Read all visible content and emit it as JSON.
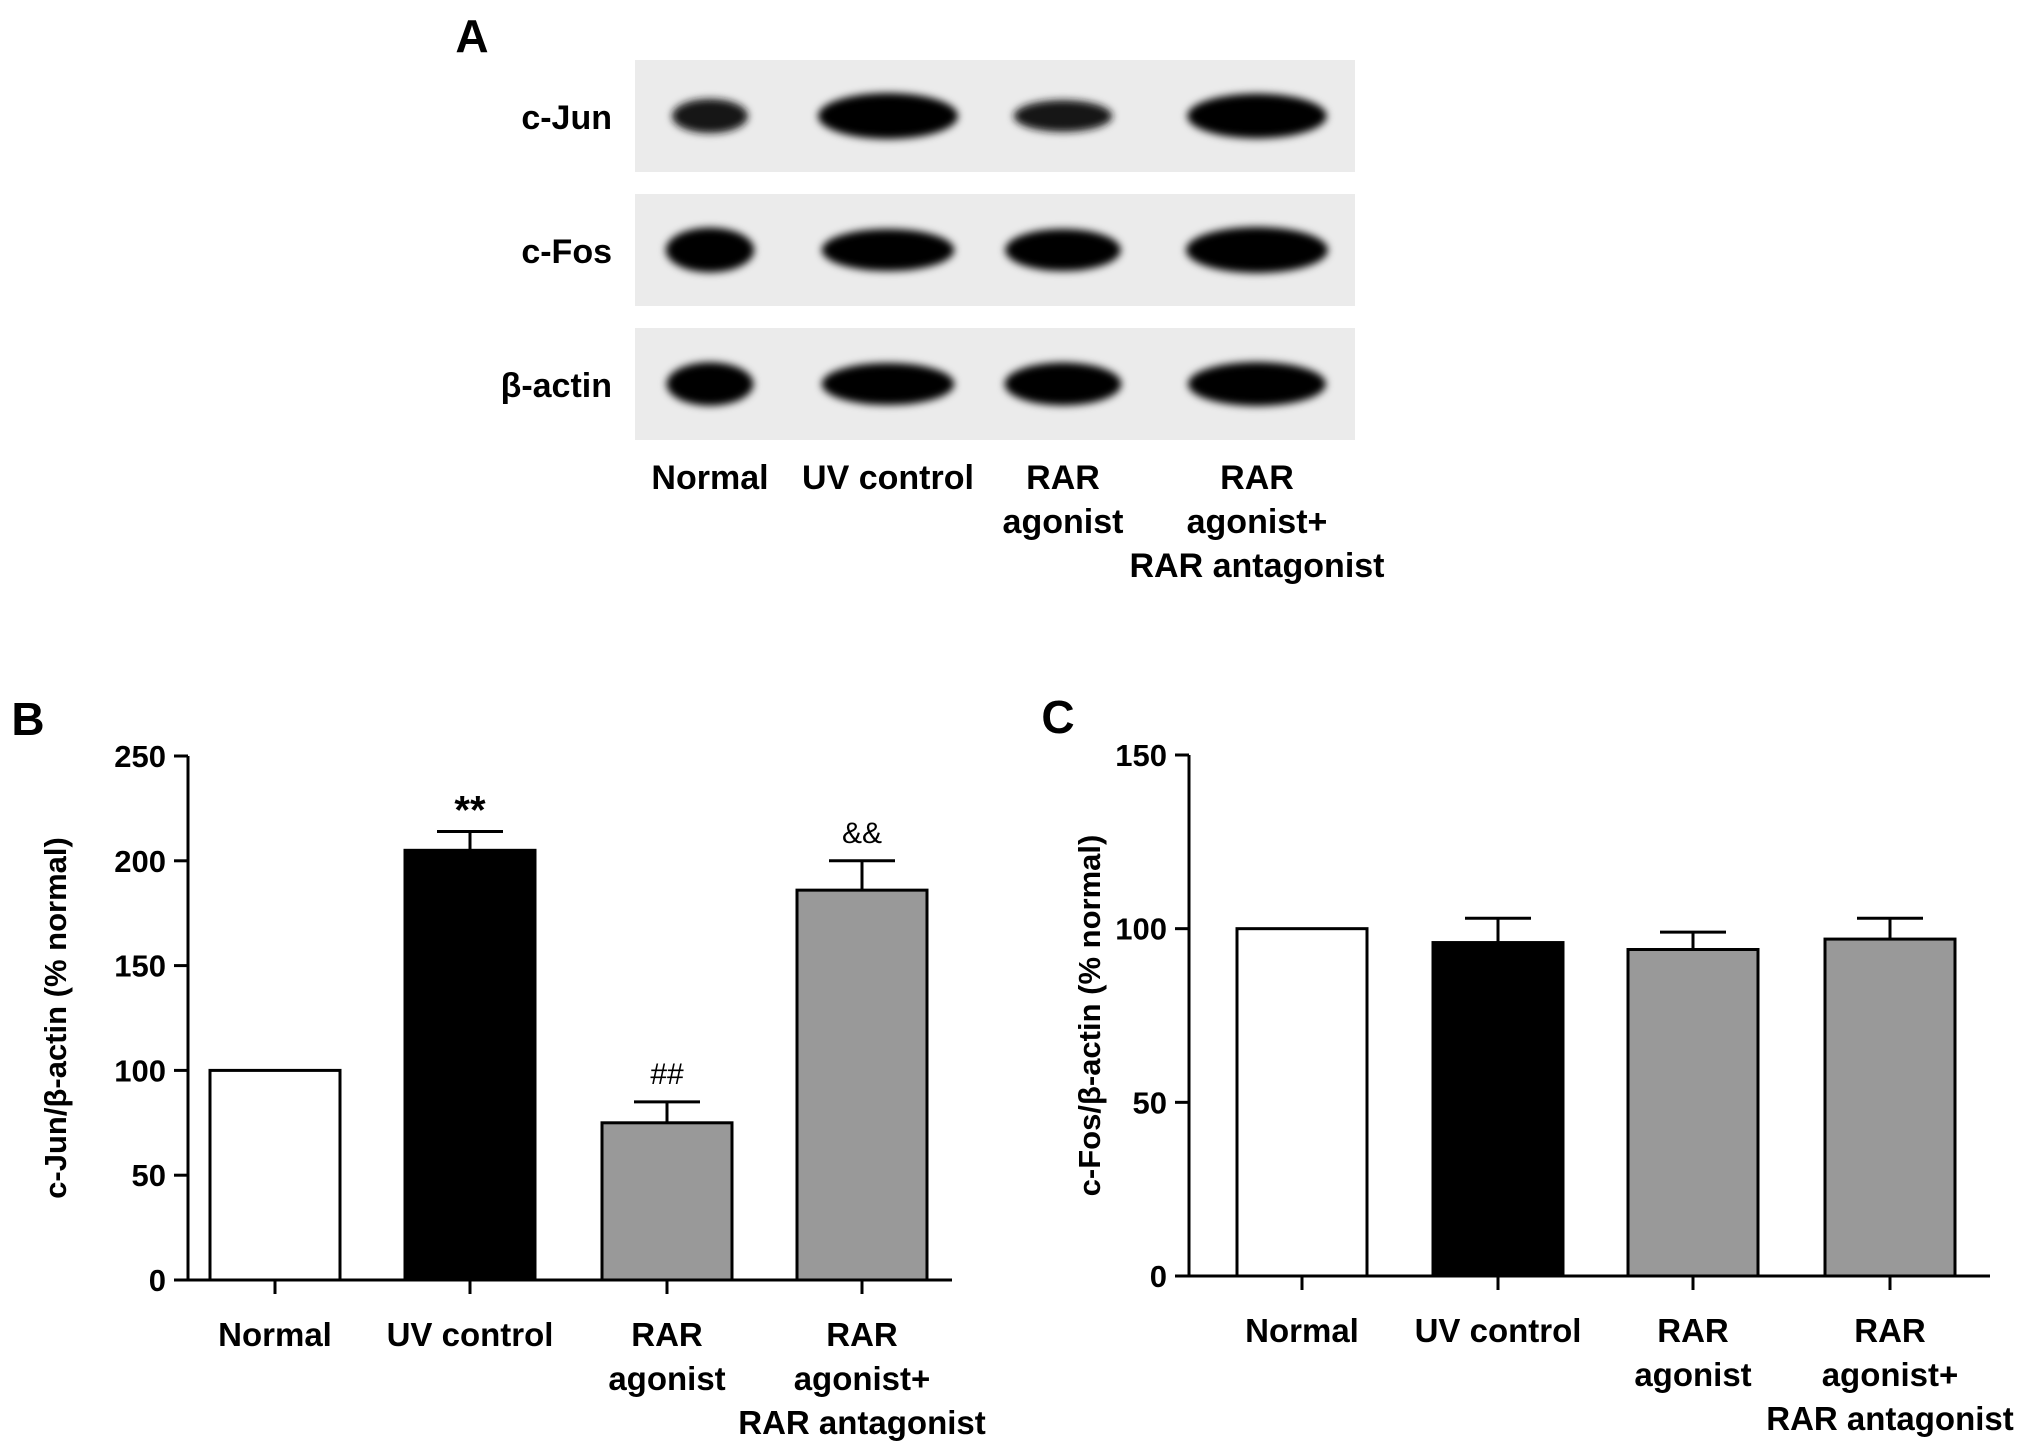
{
  "panels": {
    "a": "A",
    "b": "B",
    "c": "C"
  },
  "blot": {
    "rows": [
      "c-Jun",
      "c-Fos",
      "β-actin"
    ],
    "lanes": [
      [
        "Normal"
      ],
      [
        "UV control"
      ],
      [
        "RAR",
        "agonist"
      ],
      [
        "RAR",
        "agonist+",
        "RAR antagonist"
      ]
    ],
    "band_intensity": [
      [
        0.55,
        1.0,
        0.45,
        0.95
      ],
      [
        0.95,
        0.85,
        0.85,
        1.0
      ],
      [
        0.9,
        0.85,
        0.88,
        0.92
      ]
    ]
  },
  "chart_data": [
    {
      "type": "bar",
      "panel": "B",
      "categories": [
        [
          "Normal"
        ],
        [
          "UV control"
        ],
        [
          "RAR",
          "agonist"
        ],
        [
          "RAR",
          "agonist+",
          "RAR antagonist"
        ]
      ],
      "values": [
        100,
        205,
        75,
        186
      ],
      "errors": [
        0,
        9,
        10,
        14
      ],
      "annotations": [
        "",
        "**",
        "##",
        "&&"
      ],
      "colors": [
        "#ffffff",
        "#000000",
        "#999999",
        "#999999"
      ],
      "ylabel": "c-Jun/β-actin (% normal)",
      "ylim": [
        0,
        250
      ],
      "yticks": [
        0,
        50,
        100,
        150,
        200,
        250
      ]
    },
    {
      "type": "bar",
      "panel": "C",
      "categories": [
        [
          "Normal"
        ],
        [
          "UV control"
        ],
        [
          "RAR",
          "agonist"
        ],
        [
          "RAR",
          "agonist+",
          "RAR antagonist"
        ]
      ],
      "values": [
        100,
        96,
        94,
        97
      ],
      "errors": [
        0,
        7,
        5,
        6
      ],
      "annotations": [
        "",
        "",
        "",
        ""
      ],
      "colors": [
        "#ffffff",
        "#000000",
        "#999999",
        "#999999"
      ],
      "ylabel": "c-Fos/β-actin (% normal)",
      "ylim": [
        0,
        150
      ],
      "yticks": [
        0,
        50,
        100,
        150
      ]
    }
  ]
}
